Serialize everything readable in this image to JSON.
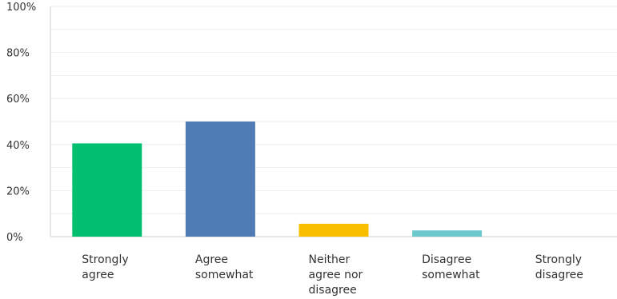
{
  "chart_data": {
    "type": "bar",
    "categories": [
      "Strongly agree",
      "Agree somewhat",
      "Neither agree nor disagree",
      "Disagree somewhat",
      "Strongly disagree"
    ],
    "category_lines": [
      [
        "Strongly",
        "agree"
      ],
      [
        "Agree",
        "somewhat"
      ],
      [
        "Neither",
        "agree nor",
        "disagree"
      ],
      [
        "Disagree",
        "somewhat"
      ],
      [
        "Strongly",
        "disagree"
      ]
    ],
    "values": [
      40.5,
      50.0,
      5.6,
      2.7,
      0
    ],
    "bar_colors": [
      "#00bf6f",
      "#507cb6",
      "#f9be00",
      "#6bc8cd",
      "#ff8b4f"
    ],
    "y_ticks": [
      "0%",
      "20%",
      "40%",
      "60%",
      "80%",
      "100%"
    ],
    "ylim": [
      0,
      100
    ],
    "title": "",
    "xlabel": "",
    "ylabel": "",
    "grid": true
  }
}
